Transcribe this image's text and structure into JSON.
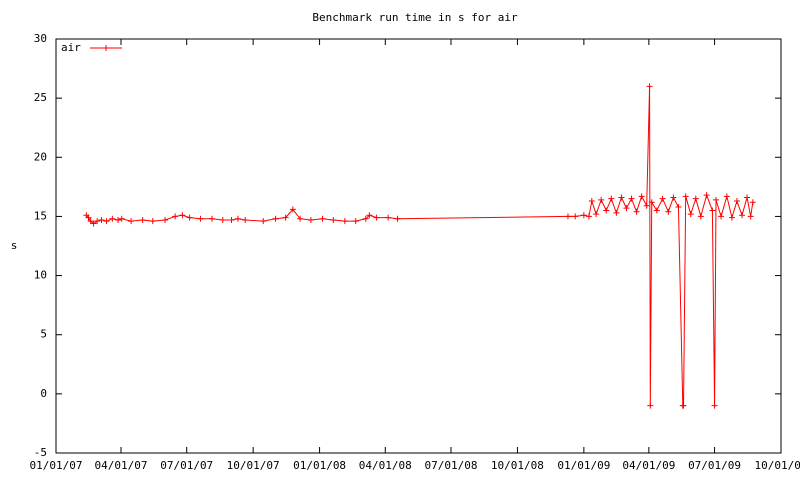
{
  "chart_data": {
    "type": "line",
    "title": "Benchmark run time in s for air",
    "ylabel": "s",
    "xlim": [
      "01/01/07",
      "10/01/09"
    ],
    "xticks": [
      "01/01/07",
      "04/01/07",
      "07/01/07",
      "10/01/07",
      "01/01/08",
      "04/01/08",
      "07/01/08",
      "10/01/08",
      "01/01/09",
      "04/01/09",
      "07/01/09",
      "10/01/09"
    ],
    "ylim": [
      -5,
      30
    ],
    "yticks": [
      -5,
      0,
      5,
      10,
      15,
      20,
      25,
      30
    ],
    "legend": "top-left",
    "x": [
      "02/12/07",
      "02/15/07",
      "02/18/07",
      "02/22/07",
      "02/27/07",
      "03/05/07",
      "03/12/07",
      "03/20/07",
      "03/28/07",
      "04/02/07",
      "04/15/07",
      "05/01/07",
      "05/15/07",
      "06/01/07",
      "06/15/07",
      "06/25/07",
      "07/05/07",
      "07/20/07",
      "08/05/07",
      "08/20/07",
      "09/01/07",
      "09/10/07",
      "09/20/07",
      "10/15/07",
      "11/01/07",
      "11/15/07",
      "11/25/07",
      "12/05/07",
      "12/20/07",
      "01/05/08",
      "01/20/08",
      "02/05/08",
      "02/20/08",
      "03/05/08",
      "03/10/08",
      "03/20/08",
      "04/05/08",
      "04/18/08",
      "12/10/08",
      "12/20/08",
      "01/01/09",
      "01/08/09",
      "01/12/09",
      "01/18/09",
      "01/25/09",
      "02/01/09",
      "02/08/09",
      "02/15/09",
      "02/22/09",
      "03/01/09",
      "03/08/09",
      "03/15/09",
      "03/22/09",
      "03/29/09",
      "04/02/09",
      "04/03/09",
      "04/05/09",
      "04/12/09",
      "04/20/09",
      "04/28/09",
      "05/05/09",
      "05/12/09",
      "05/18/09",
      "05/19/09",
      "05/22/09",
      "05/29/09",
      "06/05/09",
      "06/12/09",
      "06/20/09",
      "06/28/09",
      "07/01/09",
      "07/03/09",
      "07/10/09",
      "07/18/09",
      "07/25/09",
      "08/01/09",
      "08/08/09",
      "08/15/09",
      "08/20/09",
      "08/23/09"
    ],
    "series": [
      {
        "name": "air",
        "color": "#ff0000",
        "values": [
          15.1,
          14.9,
          14.6,
          14.4,
          14.6,
          14.7,
          14.6,
          14.8,
          14.7,
          14.8,
          14.6,
          14.7,
          14.6,
          14.7,
          15.0,
          15.1,
          14.9,
          14.8,
          14.8,
          14.7,
          14.7,
          14.8,
          14.7,
          14.6,
          14.8,
          14.9,
          15.6,
          14.8,
          14.7,
          14.8,
          14.7,
          14.6,
          14.6,
          14.8,
          15.1,
          14.9,
          14.9,
          14.8,
          15.0,
          15.0,
          15.1,
          15.0,
          16.3,
          15.2,
          16.4,
          15.5,
          16.5,
          15.3,
          16.6,
          15.7,
          16.5,
          15.4,
          16.7,
          15.9,
          26.0,
          -1.0,
          16.2,
          15.5,
          16.5,
          15.4,
          16.6,
          15.8,
          -1.0,
          -1.0,
          16.7,
          15.2,
          16.5,
          15.0,
          16.8,
          15.5,
          -1.0,
          16.4,
          15.0,
          16.7,
          14.9,
          16.3,
          15.1,
          16.6,
          15.0,
          16.2
        ]
      }
    ]
  }
}
